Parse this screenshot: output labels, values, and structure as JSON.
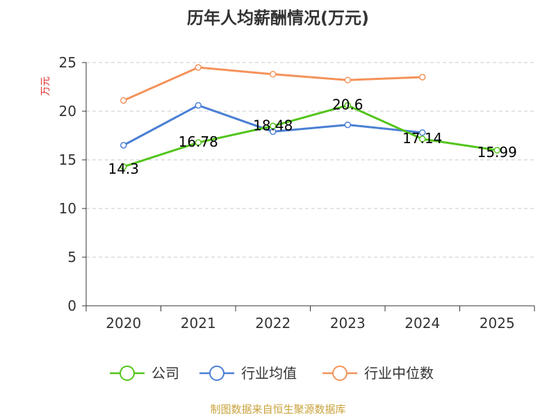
{
  "chart_data": {
    "type": "line",
    "title": "历年人均薪酬情况(万元)",
    "ylabel": "万元",
    "xlabel": "",
    "categories": [
      "2020",
      "2021",
      "2022",
      "2023",
      "2024",
      "2025"
    ],
    "ylim": [
      0,
      25
    ],
    "yticks": [
      0,
      5,
      10,
      15,
      20,
      25
    ],
    "grid": true,
    "legend_position": "bottom",
    "series": [
      {
        "name": "公司",
        "color": "#52c41a",
        "values": [
          14.3,
          16.78,
          18.48,
          20.6,
          17.14,
          15.99
        ],
        "labels": [
          "14.3",
          "16.78",
          "18.48",
          "20.6",
          "17.14",
          "15.99"
        ]
      },
      {
        "name": "行业均值",
        "color": "#4a7fd4",
        "values": [
          16.5,
          20.6,
          17.9,
          18.6,
          17.8,
          null
        ]
      },
      {
        "name": "行业中位数",
        "color": "#f4925a",
        "values": [
          21.1,
          24.5,
          23.8,
          23.2,
          23.5,
          null
        ]
      }
    ]
  },
  "source": "制图数据来自恒生聚源数据库"
}
